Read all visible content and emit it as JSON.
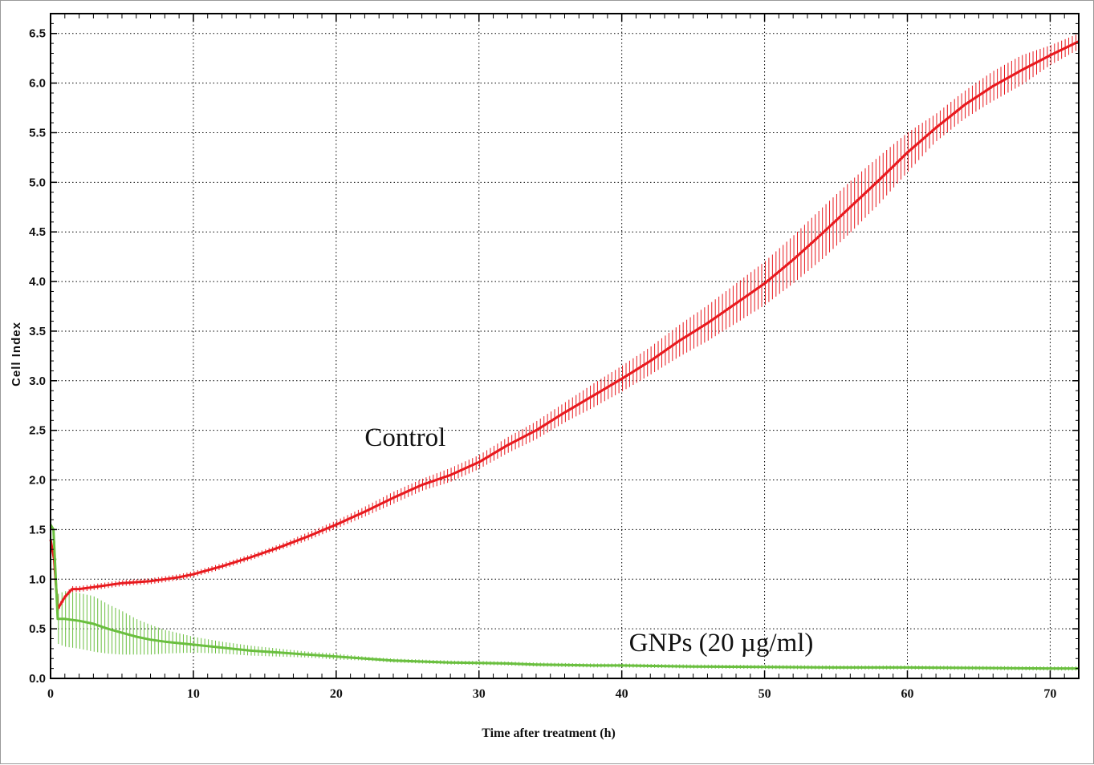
{
  "chart_data": {
    "type": "line",
    "title": "",
    "xlabel": "Time after treatment (h)",
    "ylabel": "Cell Index",
    "xlim": [
      0,
      72
    ],
    "ylim": [
      0,
      6.7
    ],
    "x_ticks": [
      "0",
      "10",
      "20",
      "30",
      "40",
      "50",
      "60",
      "70"
    ],
    "y_ticks": [
      "0.0",
      "0.5",
      "1.0",
      "1.5",
      "2.0",
      "2.5",
      "3.0",
      "3.5",
      "4.0",
      "4.5",
      "5.0",
      "5.5",
      "6.0",
      "6.5"
    ],
    "grid": true,
    "colors": {
      "control": "#e8191e",
      "gnps": "#6abf3f"
    },
    "series": [
      {
        "name": "Control",
        "x": [
          0,
          0.25,
          0.5,
          1,
          1.5,
          2,
          3,
          4,
          5,
          6,
          7,
          8,
          9,
          10,
          12,
          14,
          16,
          18,
          20,
          22,
          24,
          26,
          28,
          30,
          32,
          34,
          36,
          38,
          40,
          42,
          44,
          46,
          48,
          50,
          52,
          54,
          56,
          58,
          60,
          62,
          64,
          66,
          68,
          70,
          72
        ],
        "y": [
          1.4,
          1.2,
          0.7,
          0.82,
          0.9,
          0.9,
          0.92,
          0.94,
          0.96,
          0.97,
          0.98,
          1.0,
          1.02,
          1.05,
          1.13,
          1.22,
          1.32,
          1.43,
          1.55,
          1.68,
          1.82,
          1.95,
          2.05,
          2.18,
          2.35,
          2.5,
          2.68,
          2.85,
          3.02,
          3.2,
          3.4,
          3.58,
          3.78,
          3.98,
          4.22,
          4.48,
          4.75,
          5.02,
          5.3,
          5.55,
          5.78,
          5.97,
          6.13,
          6.28,
          6.42
        ],
        "error": [
          0.02,
          0.02,
          0.03,
          0.03,
          0.03,
          0.03,
          0.03,
          0.03,
          0.03,
          0.03,
          0.03,
          0.03,
          0.03,
          0.03,
          0.03,
          0.03,
          0.03,
          0.04,
          0.04,
          0.05,
          0.06,
          0.06,
          0.07,
          0.07,
          0.08,
          0.09,
          0.1,
          0.12,
          0.13,
          0.14,
          0.16,
          0.18,
          0.2,
          0.22,
          0.24,
          0.26,
          0.26,
          0.24,
          0.2,
          0.14,
          0.14,
          0.15,
          0.15,
          0.1,
          0.08
        ]
      },
      {
        "name": "GNPs (20 µg/ml)",
        "x": [
          0,
          0.2,
          0.5,
          1,
          2,
          3,
          4,
          5,
          6,
          7,
          8,
          10,
          12,
          14,
          16,
          18,
          20,
          22,
          24,
          26,
          28,
          30,
          32,
          34,
          36,
          38,
          40,
          45,
          50,
          55,
          60,
          65,
          70,
          72
        ],
        "y": [
          1.55,
          1.5,
          0.6,
          0.6,
          0.58,
          0.55,
          0.5,
          0.46,
          0.42,
          0.39,
          0.37,
          0.34,
          0.31,
          0.28,
          0.26,
          0.24,
          0.22,
          0.2,
          0.18,
          0.17,
          0.16,
          0.155,
          0.15,
          0.14,
          0.135,
          0.13,
          0.13,
          0.12,
          0.115,
          0.11,
          0.11,
          0.105,
          0.1,
          0.1
        ],
        "error": [
          0.15,
          0.15,
          0.25,
          0.28,
          0.28,
          0.28,
          0.25,
          0.22,
          0.18,
          0.15,
          0.12,
          0.08,
          0.06,
          0.05,
          0.04,
          0.03,
          0.03,
          0.02,
          0.02,
          0.02,
          0.02,
          0.02,
          0.02,
          0.02,
          0.02,
          0.02,
          0.02,
          0.02,
          0.02,
          0.02,
          0.02,
          0.02,
          0.02,
          0.02
        ]
      }
    ],
    "annotations": [
      {
        "text": "Control",
        "x": 22,
        "y": 2.2,
        "series": "Control"
      },
      {
        "text": "GNPs (20 µg/ml)",
        "x": 40.5,
        "y": 0.26,
        "series": "GNPs (20 µg/ml)"
      }
    ]
  }
}
